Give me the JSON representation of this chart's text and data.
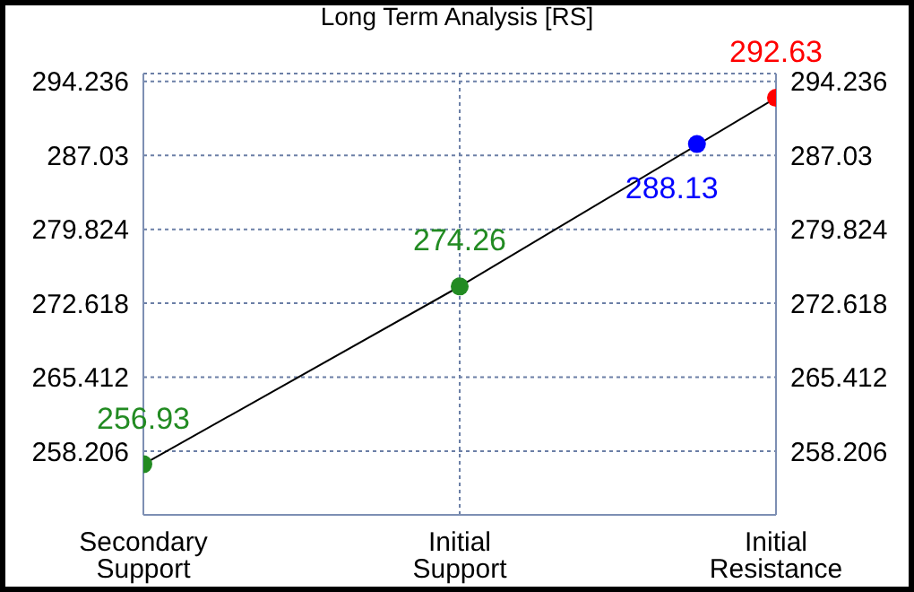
{
  "chart_data": {
    "type": "line",
    "title": "Long Term Analysis [RS]",
    "categories": [
      "Secondary\nSupport",
      null,
      null,
      null,
      "Initial\nSupport",
      null,
      null,
      null,
      "Initial\nResistance"
    ],
    "series": [
      {
        "type": "line",
        "color": "#000000",
        "colors": [
          "#228b22",
          null,
          null,
          null,
          "#228b22",
          null,
          null,
          null,
          "#ff0000"
        ],
        "values": [
          256.93,
          null,
          null,
          null,
          274.26,
          null,
          null,
          null,
          292.63
        ]
      },
      {
        "type": "scatter",
        "color": "#0000ff",
        "values": [
          null,
          null,
          null,
          null,
          null,
          null,
          null,
          288.13,
          null
        ]
      }
    ],
    "ylim": [
      252,
      295
    ],
    "yticks": [
      258.206,
      265.412,
      272.618,
      279.824,
      287.03,
      294.236
    ],
    "y2lim": [
      252,
      295
    ],
    "y2ticks": [
      258.206,
      265.412,
      272.618,
      279.824,
      287.03,
      294.236
    ],
    "grid": true,
    "marker": "circle",
    "data_labels": true
  }
}
